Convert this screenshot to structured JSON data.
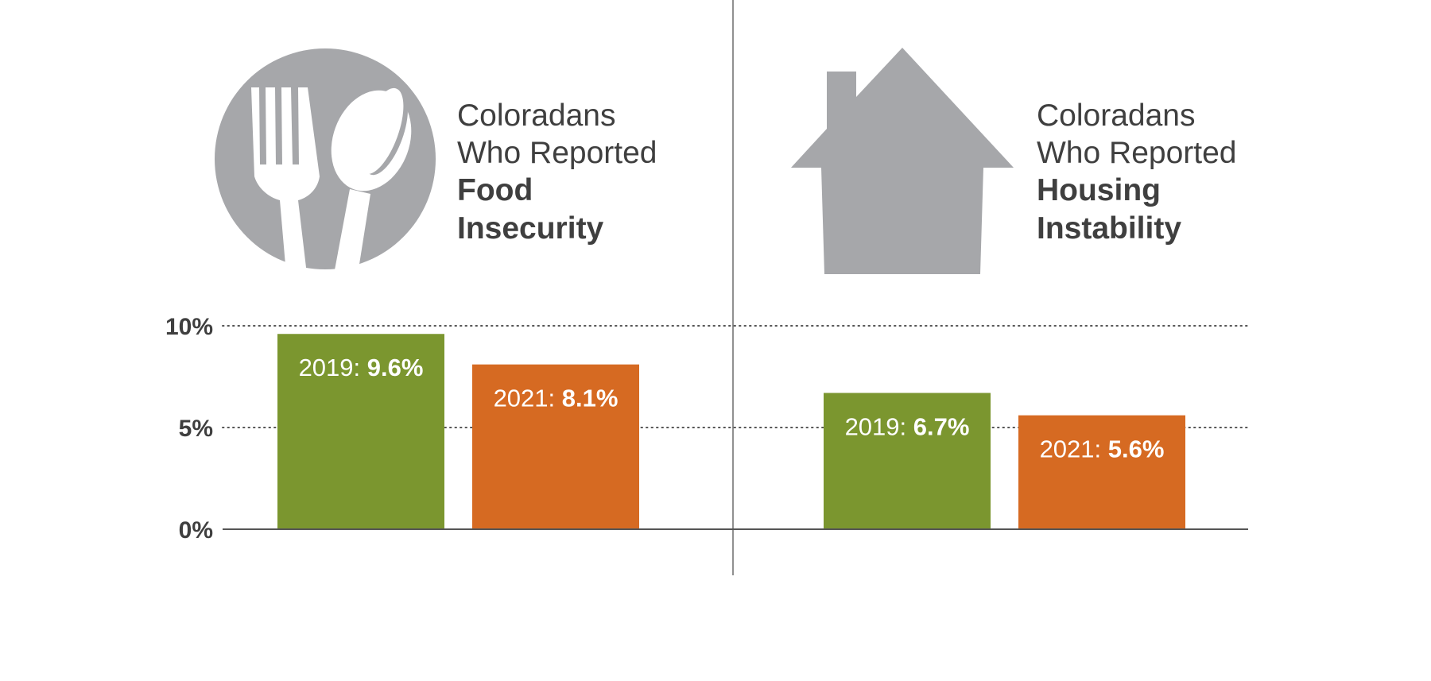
{
  "colors": {
    "y2019": "#7b962f",
    "y2021": "#d66a22",
    "icon": "#a6a7aa",
    "text": "#3f3f3f",
    "axis": "#555555"
  },
  "panels": [
    {
      "icon": "fork-spoon-icon",
      "title_line1": "Coloradans",
      "title_line2": "Who Reported",
      "title_bold1": "Food",
      "title_bold2": "Insecurity"
    },
    {
      "icon": "house-icon",
      "title_line1": "Coloradans",
      "title_line2": "Who Reported",
      "title_bold1": "Housing",
      "title_bold2": "Instability"
    }
  ],
  "chart_data": {
    "type": "bar",
    "ylim": [
      0,
      10
    ],
    "yticks": [
      "0%",
      "5%",
      "10%"
    ],
    "ytick_values": [
      0,
      5,
      10
    ],
    "grid": "dotted",
    "groups": [
      {
        "name": "Food Insecurity",
        "bars": [
          {
            "year": "2019",
            "value": 9.6,
            "value_label": "9.6%"
          },
          {
            "year": "2021",
            "value": 8.1,
            "value_label": "8.1%"
          }
        ]
      },
      {
        "name": "Housing Instability",
        "bars": [
          {
            "year": "2019",
            "value": 6.7,
            "value_label": "6.7%"
          },
          {
            "year": "2021",
            "value": 5.6,
            "value_label": "5.6%"
          }
        ]
      }
    ]
  }
}
